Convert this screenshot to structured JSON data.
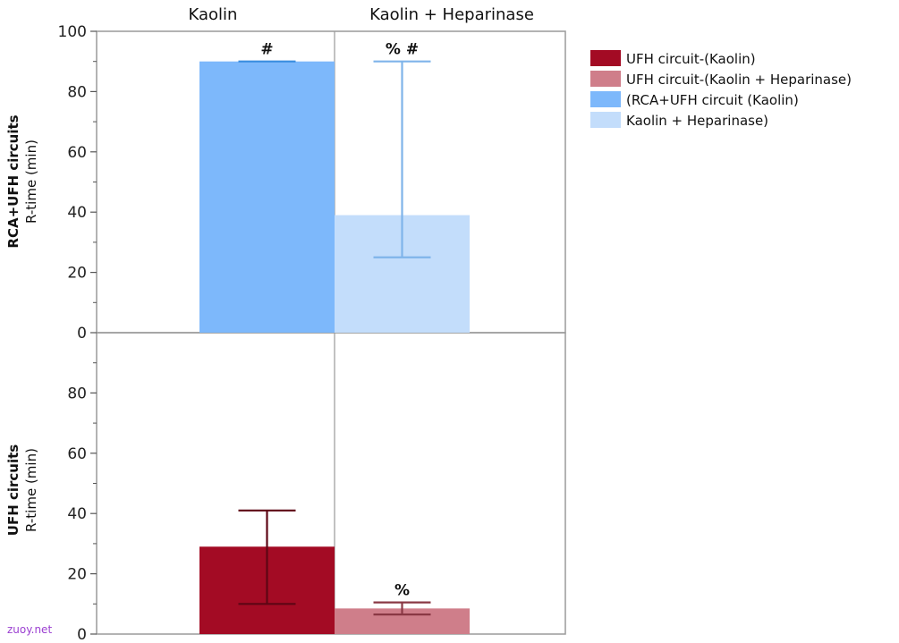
{
  "chart_data": {
    "type": "bar",
    "columns": [
      "Kaolin",
      "Kaolin + Heparinase"
    ],
    "ylim": [
      0,
      100
    ],
    "panels": [
      {
        "row_label": "RCA+UFH circuits",
        "ylabel": "R-time (min)",
        "yticks": [
          0,
          20,
          40,
          60,
          80,
          100
        ],
        "bars": [
          {
            "category": "Kaolin",
            "value": 90,
            "err_low": 90,
            "err_high": 90,
            "color": "#7db8fb",
            "err_color": "#3a8de0",
            "annotation": "#"
          },
          {
            "category": "Kaolin + Heparinase",
            "value": 39,
            "err_low": 25,
            "err_high": 90,
            "color": "#c3ddfb",
            "err_color": "#7fb4ea",
            "annotation": "% #"
          }
        ]
      },
      {
        "row_label": "UFH circuits",
        "ylabel": "R-time (min)",
        "yticks": [
          0,
          20,
          40,
          60,
          80
        ],
        "bars": [
          {
            "category": "Kaolin",
            "value": 29,
            "err_low": 10,
            "err_high": 41,
            "color": "#a30b24",
            "err_color": "#5e0614",
            "annotation": ""
          },
          {
            "category": "Kaolin + Heparinase",
            "value": 8.5,
            "err_low": 6.5,
            "err_high": 10.5,
            "color": "#cf7e8a",
            "err_color": "#8a3844",
            "annotation": "%"
          }
        ]
      }
    ],
    "legend": [
      {
        "label": "UFH circuit-(Kaolin)",
        "color": "#a30b24"
      },
      {
        "label": "UFH circuit-(Kaolin + Heparinase)",
        "color": "#cf7e8a"
      },
      {
        "label": "(RCA+UFH circuit (Kaolin)",
        "color": "#7db8fb"
      },
      {
        "label": "Kaolin + Heparinase)",
        "color": "#c3ddfb"
      }
    ],
    "legend_position": "top-right",
    "grid": false
  },
  "watermark": "zuoy.net"
}
